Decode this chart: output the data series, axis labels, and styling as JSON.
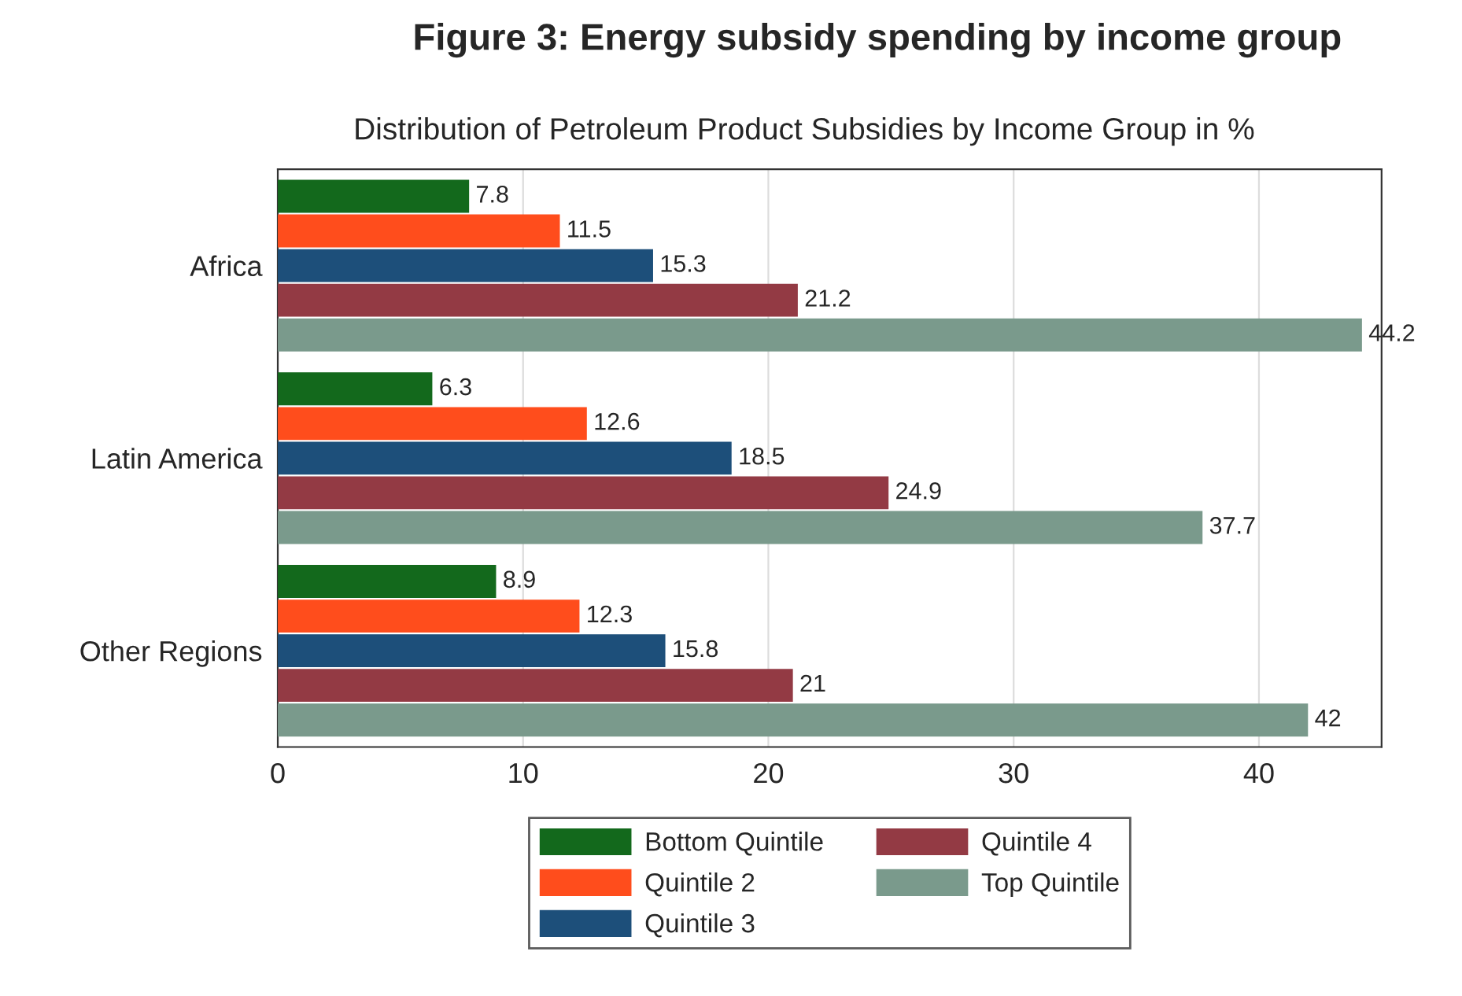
{
  "chart_data": {
    "type": "bar",
    "orientation": "horizontal",
    "title": "Figure 3: Energy subsidy spending by income group",
    "subtitle": "Distribution of Petroleum Product Subsidies by Income Group in %",
    "categories": [
      "Africa",
      "Latin America",
      "Other Regions"
    ],
    "series": [
      {
        "name": "Bottom Quintile",
        "color": "#13691c",
        "values": [
          7.8,
          6.3,
          8.9
        ]
      },
      {
        "name": "Quintile 2",
        "color": "#ff4d1c",
        "values": [
          11.5,
          12.6,
          12.3
        ]
      },
      {
        "name": "Quintile 3",
        "color": "#1d4f7a",
        "values": [
          15.3,
          18.5,
          15.8
        ]
      },
      {
        "name": "Quintile 4",
        "color": "#933a44",
        "values": [
          21.2,
          24.9,
          21
        ]
      },
      {
        "name": "Top Quintile",
        "color": "#7a9a8c",
        "values": [
          44.2,
          37.7,
          42
        ]
      }
    ],
    "xlim": [
      0,
      45
    ],
    "xticks": [
      0,
      10,
      20,
      30,
      40
    ],
    "grid": "x",
    "legend": "bottom",
    "data_labels": true
  }
}
